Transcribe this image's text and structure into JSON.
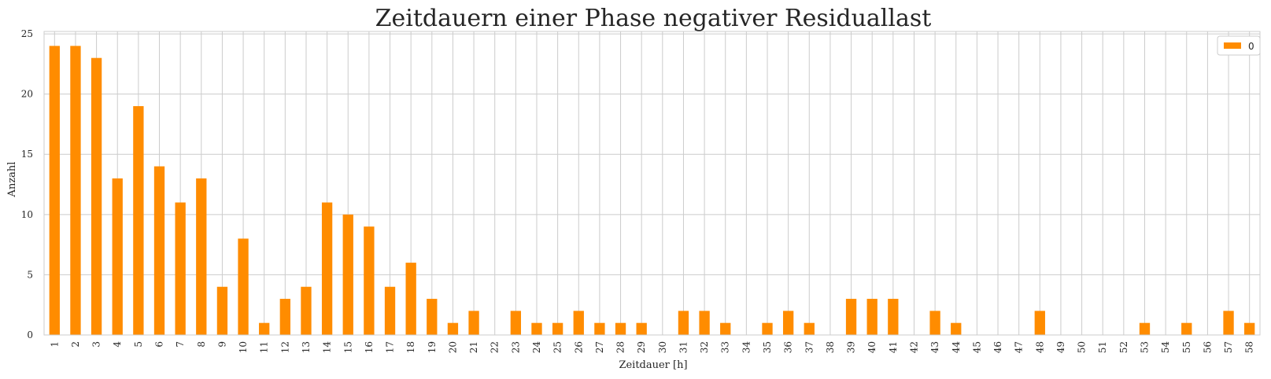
{
  "chart_data": {
    "type": "bar",
    "title": "Zeitdauern einer Phase negativer Residuallast",
    "xlabel": "Zeitdauer [h]",
    "ylabel": "Anzahl",
    "categories": [
      "1",
      "2",
      "3",
      "4",
      "5",
      "6",
      "7",
      "8",
      "9",
      "10",
      "11",
      "12",
      "13",
      "14",
      "15",
      "16",
      "17",
      "18",
      "19",
      "20",
      "21",
      "22",
      "23",
      "24",
      "25",
      "26",
      "27",
      "28",
      "29",
      "30",
      "31",
      "32",
      "33",
      "34",
      "35",
      "36",
      "37",
      "38",
      "39",
      "40",
      "41",
      "42",
      "43",
      "44",
      "45",
      "46",
      "47",
      "48",
      "49",
      "50",
      "51",
      "52",
      "53",
      "54",
      "55",
      "56",
      "57",
      "58"
    ],
    "series": [
      {
        "name": "0",
        "color": "#ff8c00",
        "values": [
          24,
          24,
          23,
          13,
          19,
          14,
          11,
          13,
          4,
          8,
          1,
          3,
          4,
          11,
          10,
          9,
          4,
          6,
          3,
          1,
          2,
          0,
          2,
          1,
          1,
          2,
          1,
          1,
          1,
          0,
          2,
          2,
          1,
          0,
          1,
          2,
          1,
          0,
          3,
          3,
          3,
          0,
          2,
          1,
          0,
          0,
          0,
          2,
          0,
          0,
          0,
          0,
          1,
          0,
          1,
          0,
          2,
          1
        ]
      }
    ],
    "ylim": [
      0,
      25.2
    ],
    "yticks": [
      0,
      5,
      10,
      15,
      20,
      25
    ],
    "grid": true,
    "legend_position": "top-right",
    "colors": {
      "grid": "#cccccc",
      "axes_edge": "#cccccc",
      "text": "#262626"
    }
  }
}
